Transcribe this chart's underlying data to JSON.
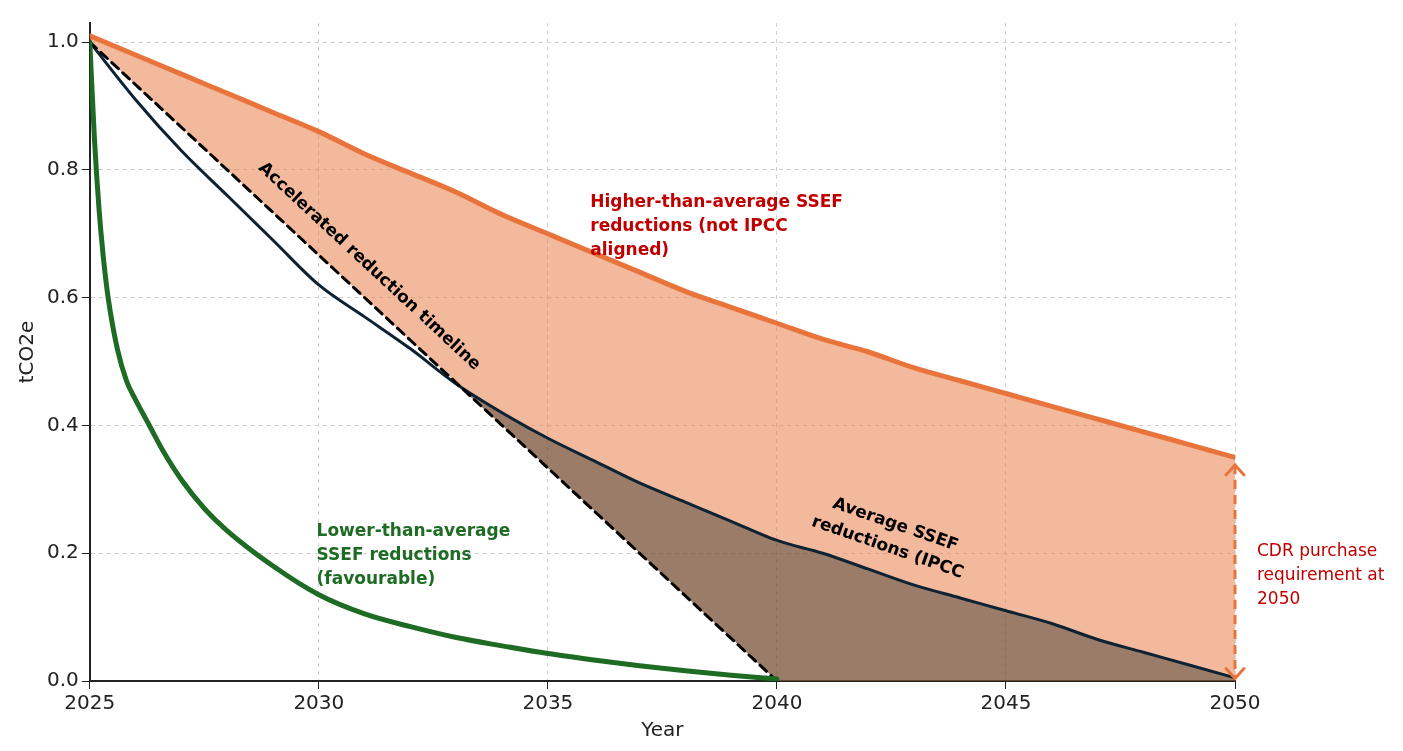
{
  "chart_data": {
    "type": "line",
    "xlabel": "Year",
    "ylabel": "tCO2e",
    "xlim": [
      2025,
      2050
    ],
    "ylim": [
      0,
      1.03
    ],
    "xticks": [
      2025,
      2030,
      2035,
      2040,
      2045,
      2050
    ],
    "yticks": [
      {
        "value": 0,
        "label": "0.0"
      },
      0.2,
      0.4,
      0.6,
      0.8,
      {
        "value": 1,
        "label": "1.0"
      }
    ],
    "grid": true,
    "legend": false,
    "marker": "none",
    "series": [
      {
        "color": "#e8743b",
        "x": [
          2025,
          2026,
          2027,
          2028,
          2029,
          2030,
          2031,
          2032,
          2033,
          2034,
          2035,
          2036,
          2037,
          2038,
          2039,
          2040,
          2041,
          2042,
          2043,
          2044,
          2045,
          2046,
          2047,
          2048,
          2049,
          2050
        ],
        "values": [
          1.01,
          0.98,
          0.95,
          0.92,
          0.89,
          0.86,
          0.825,
          0.795,
          0.765,
          0.73,
          0.7,
          0.67,
          0.64,
          0.61,
          0.585,
          0.56,
          0.535,
          0.515,
          0.49,
          0.47,
          0.45,
          0.43,
          0.41,
          0.39,
          0.37,
          0.35
        ],
        "upper": [
          1.01,
          0.98,
          0.95,
          0.92,
          0.89,
          0.86,
          0.825,
          0.795,
          0.765,
          0.73,
          0.7,
          0.67,
          0.64,
          0.61,
          0.585,
          0.56,
          0.535,
          0.515,
          0.49,
          0.47,
          0.45,
          0.43,
          0.41,
          0.39,
          0.37,
          0.35
        ],
        "lower": [
          1.0,
          0.933,
          0.867,
          0.8,
          0.733,
          0.667,
          0.6,
          0.533,
          0.467,
          0.42,
          0.38,
          0.345,
          0.31,
          0.28,
          0.25,
          0.22,
          0.2,
          0.175,
          0.15,
          0.13,
          0.11,
          0.09,
          0.065,
          0.045,
          0.025,
          0.005
        ]
      },
      {
        "color": "#0d2233",
        "x": [
          2025,
          2026,
          2027,
          2028,
          2029,
          2030,
          2031,
          2032,
          2033,
          2034,
          2035,
          2036,
          2037,
          2038,
          2039,
          2040,
          2041,
          2042,
          2043,
          2044,
          2045,
          2046,
          2047,
          2048,
          2049,
          2050
        ],
        "values": [
          1.0,
          0.91,
          0.83,
          0.76,
          0.69,
          0.62,
          0.57,
          0.52,
          0.465,
          0.42,
          0.38,
          0.345,
          0.31,
          0.28,
          0.25,
          0.22,
          0.2,
          0.175,
          0.15,
          0.13,
          0.11,
          0.09,
          0.065,
          0.045,
          0.025,
          0.005
        ],
        "upper": [
          1.0,
          0.91,
          0.83,
          0.76,
          0.69,
          0.62,
          0.57,
          0.52,
          0.465,
          0.42,
          0.38,
          0.345,
          0.31,
          0.28,
          0.25,
          0.22,
          0.2,
          0.175,
          0.15,
          0.13,
          0.11,
          0.09,
          0.065,
          0.045,
          0.025,
          0.005
        ],
        "lower": [
          1.0,
          0.91,
          0.83,
          0.76,
          0.69,
          0.62,
          0.57,
          0.52,
          0.465,
          0.4,
          0.333,
          0.267,
          0.2,
          0.133,
          0.067,
          0,
          0,
          0,
          0,
          0,
          0,
          0,
          0,
          0,
          0,
          0
        ]
      },
      {
        "color": "#000000",
        "line_style": "dashed",
        "x": [
          2025,
          2040
        ],
        "values": [
          1.0,
          0
        ]
      },
      {
        "color": "#1e6b23",
        "x": [
          2025,
          2025.1,
          2025.2,
          2025.3,
          2025.4,
          2025.6,
          2025.8,
          2026,
          2026.3,
          2026.6,
          2027,
          2027.5,
          2028,
          2029,
          2030,
          2031,
          2032,
          2033,
          2034,
          2035,
          2036,
          2037,
          2038,
          2039,
          2040
        ],
        "values": [
          1.0,
          0.85,
          0.74,
          0.66,
          0.6,
          0.52,
          0.47,
          0.44,
          0.4,
          0.36,
          0.315,
          0.27,
          0.235,
          0.18,
          0.135,
          0.105,
          0.085,
          0.068,
          0.055,
          0.043,
          0.033,
          0.024,
          0.016,
          0.009,
          0.003
        ]
      }
    ],
    "annotations": [
      "Accelerated reduction timeline",
      "Higher-than-average SSEF reductions (not IPCC aligned)",
      "Average SSEF reductions (IPCC",
      "Lower-than-average SSEF reductions (favourable)",
      "CDR purchase requirement at 2050"
    ]
  }
}
